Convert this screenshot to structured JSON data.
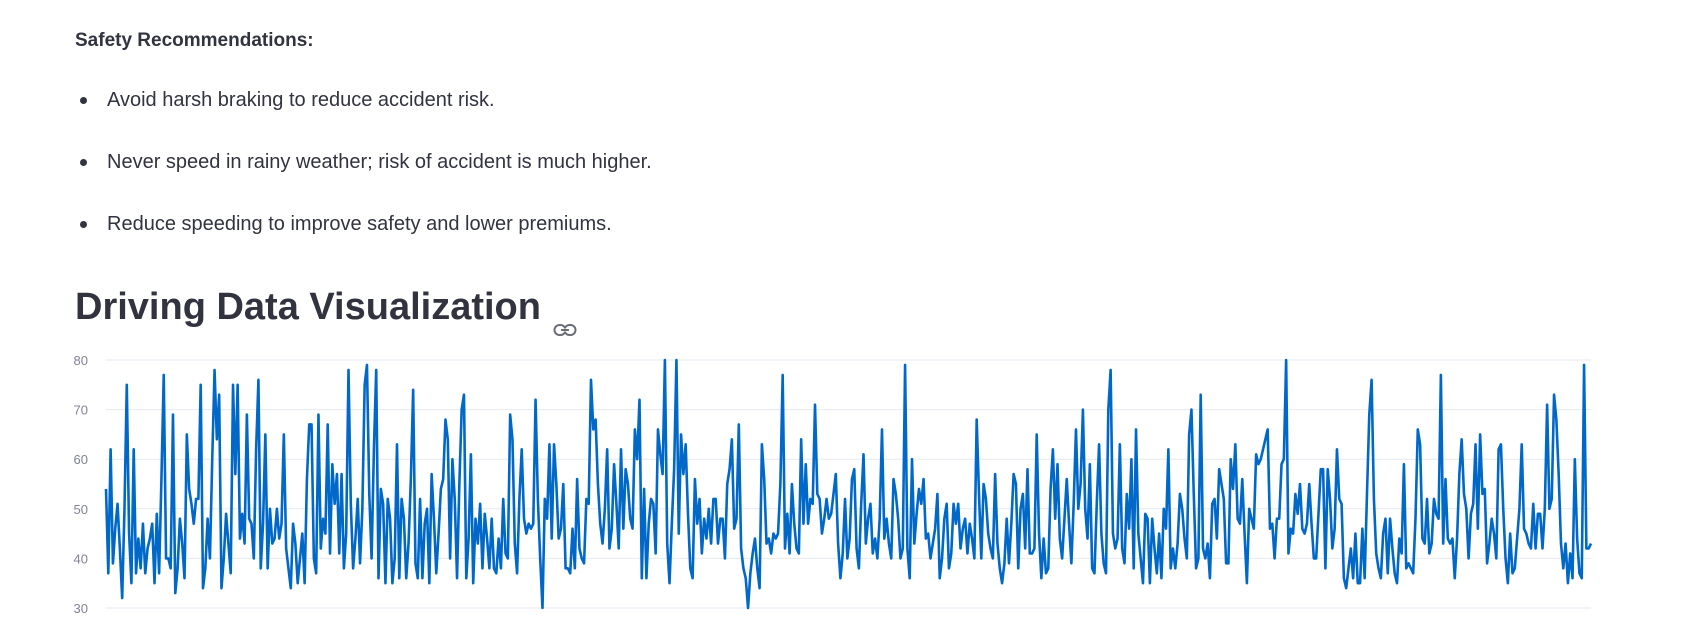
{
  "recommendations": {
    "title": "Safety Recommendations:",
    "items": [
      "Avoid harsh braking to reduce accident risk.",
      "Never speed in rainy weather; risk of accident is much higher.",
      "Reduce speeding to improve safety and lower premiums."
    ]
  },
  "visualization": {
    "heading": "Driving Data Visualization",
    "link_icon": "link-icon"
  },
  "chart_data": {
    "type": "line",
    "title": "",
    "xlabel": "",
    "ylabel": "",
    "ylim": [
      30,
      80
    ],
    "yticks": [
      "80",
      "70",
      "60",
      "50",
      "40",
      "30"
    ],
    "grid": true,
    "line_color": "#0068c9",
    "series": [
      {
        "values": [
          54,
          37,
          62,
          39,
          46,
          51,
          42,
          32,
          50,
          75,
          45,
          35,
          62,
          37,
          44,
          38,
          47,
          37,
          42,
          44,
          47,
          35,
          49,
          37,
          56,
          77,
          40,
          40,
          38,
          69,
          33,
          38,
          48,
          43,
          36,
          65,
          54,
          51,
          47,
          52,
          52,
          75,
          34,
          38,
          48,
          40,
          60,
          78,
          64,
          73,
          34,
          40,
          49,
          43,
          37,
          75,
          57,
          75,
          44,
          49,
          43,
          69,
          48,
          47,
          40,
          62,
          76,
          38,
          47,
          65,
          38,
          50,
          43,
          44,
          50,
          44,
          47,
          65,
          42,
          38,
          34,
          47,
          43,
          35,
          40,
          45,
          35,
          56,
          67,
          67,
          40,
          37,
          69,
          42,
          48,
          45,
          67,
          41,
          59,
          51,
          57,
          41,
          57,
          38,
          45,
          78,
          51,
          38,
          44,
          52,
          39,
          50,
          75,
          79,
          53,
          40,
          62,
          78,
          36,
          54,
          51,
          35,
          52,
          48,
          35,
          40,
          63,
          36,
          52,
          48,
          36,
          43,
          56,
          74,
          39,
          36,
          52,
          36,
          47,
          50,
          35,
          57,
          48,
          37,
          45,
          54,
          56,
          68,
          64,
          40,
          60,
          52,
          36,
          55,
          70,
          73,
          36,
          44,
          61,
          35,
          48,
          43,
          51,
          38,
          49,
          44,
          38,
          48,
          38,
          37,
          44,
          38,
          52,
          41,
          40,
          69,
          64,
          43,
          37,
          52,
          62,
          48,
          45,
          47,
          46,
          47,
          72,
          52,
          40,
          30,
          52,
          48,
          63,
          44,
          63,
          55,
          44,
          46,
          55,
          38,
          38,
          37,
          46,
          38,
          56,
          42,
          40,
          39,
          52,
          51,
          76,
          66,
          68,
          55,
          47,
          43,
          50,
          62,
          42,
          46,
          59,
          51,
          42,
          62,
          46,
          58,
          55,
          48,
          46,
          66,
          60,
          72,
          36,
          54,
          36,
          47,
          52,
          51,
          41,
          66,
          61,
          57,
          80,
          43,
          35,
          47,
          58,
          80,
          45,
          65,
          57,
          63,
          49,
          38,
          36,
          56,
          47,
          52,
          41,
          48,
          44,
          50,
          43,
          52,
          52,
          43,
          48,
          48,
          40,
          55,
          58,
          64,
          46,
          48,
          67,
          42,
          38,
          36,
          30,
          37,
          41,
          44,
          38,
          34,
          63,
          56,
          43,
          44,
          41,
          45,
          44,
          45,
          55,
          77,
          42,
          49,
          41,
          55,
          47,
          42,
          41,
          64,
          47,
          59,
          47,
          52,
          51,
          71,
          53,
          52,
          45,
          48,
          52,
          48,
          49,
          53,
          57,
          43,
          36,
          41,
          52,
          40,
          44,
          56,
          58,
          42,
          38,
          51,
          61,
          43,
          48,
          51,
          41,
          44,
          40,
          48,
          66,
          44,
          48,
          43,
          40,
          56,
          53,
          48,
          40,
          42,
          79,
          42,
          36,
          60,
          43,
          49,
          54,
          51,
          56,
          44,
          45,
          40,
          43,
          46,
          53,
          36,
          40,
          48,
          51,
          38,
          41,
          51,
          47,
          51,
          42,
          46,
          48,
          41,
          47,
          44,
          40,
          68,
          53,
          40,
          55,
          52,
          45,
          42,
          40,
          57,
          43,
          38,
          35,
          39,
          48,
          39,
          47,
          57,
          55,
          38,
          50,
          53,
          42,
          58,
          41,
          41,
          42,
          65,
          45,
          36,
          44,
          37,
          38,
          54,
          62,
          48,
          59,
          44,
          40,
          48,
          56,
          47,
          39,
          51,
          66,
          50,
          55,
          70,
          50,
          44,
          59,
          38,
          37,
          51,
          63,
          45,
          39,
          37,
          70,
          78,
          45,
          42,
          44,
          63,
          42,
          39,
          53,
          46,
          60,
          38,
          66,
          45,
          40,
          35,
          49,
          48,
          35,
          48,
          42,
          37,
          45,
          36,
          50,
          46,
          62,
          38,
          42,
          38,
          43,
          53,
          50,
          44,
          40,
          65,
          70,
          53,
          38,
          40,
          73,
          42,
          40,
          43,
          36,
          51,
          52,
          44,
          58,
          55,
          52,
          39,
          39,
          60,
          54,
          63,
          48,
          47,
          56,
          45,
          35,
          50,
          48,
          46,
          61,
          59,
          60,
          62,
          64,
          66,
          46,
          47,
          40,
          48,
          48,
          59,
          60,
          80,
          41,
          46,
          45,
          53,
          49,
          55,
          46,
          45,
          47,
          55,
          47,
          40,
          40,
          49,
          58,
          58,
          38,
          58,
          52,
          42,
          46,
          62,
          52,
          51,
          36,
          34,
          38,
          42,
          36,
          45,
          35,
          35,
          46,
          36,
          53,
          69,
          76,
          52,
          41,
          38,
          36,
          45,
          48,
          37,
          48,
          42,
          37,
          35,
          44,
          41,
          59,
          38,
          39,
          38,
          37,
          48,
          66,
          63,
          44,
          43,
          52,
          41,
          43,
          52,
          49,
          48,
          77,
          43,
          56,
          44,
          43,
          44,
          36,
          44,
          57,
          64,
          53,
          50,
          40,
          49,
          51,
          63,
          46,
          65,
          53,
          54,
          39,
          43,
          48,
          45,
          40,
          62,
          63,
          50,
          40,
          35,
          45,
          37,
          38,
          44,
          50,
          63,
          46,
          45,
          43,
          42,
          51,
          42,
          49,
          49,
          42,
          50,
          71,
          50,
          52,
          73,
          68,
          57,
          43,
          38,
          43,
          35,
          41,
          36,
          60,
          44,
          37,
          36,
          79,
          42,
          42,
          43
        ]
      }
    ]
  }
}
